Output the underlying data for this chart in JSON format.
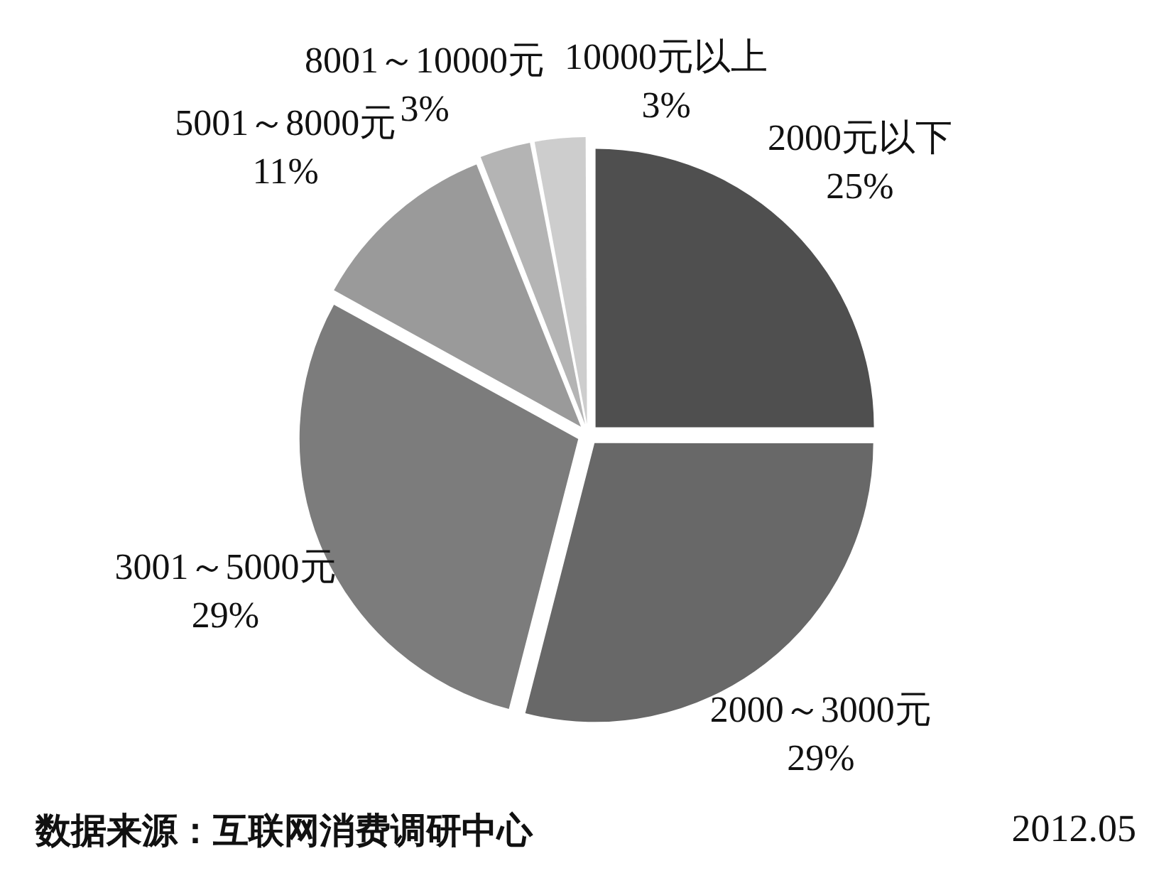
{
  "chart_data": {
    "type": "pie",
    "categories": [
      "2000元以下",
      "2000～3000元",
      "3001～5000元",
      "5001～8000元",
      "8001～10000元",
      "10000元以上"
    ],
    "values": [
      25,
      29,
      29,
      11,
      3,
      3
    ],
    "value_labels": [
      "25%",
      "29%",
      "29%",
      "11%",
      "3%",
      "3%"
    ],
    "colors": [
      "#4f4f4f",
      "#686868",
      "#7c7c7c",
      "#9a9a9a",
      "#b4b4b4",
      "#cdcdcd"
    ],
    "legend": false,
    "annotations": [
      "数据来源：互联网消费调研中心",
      "2012.05"
    ]
  }
}
